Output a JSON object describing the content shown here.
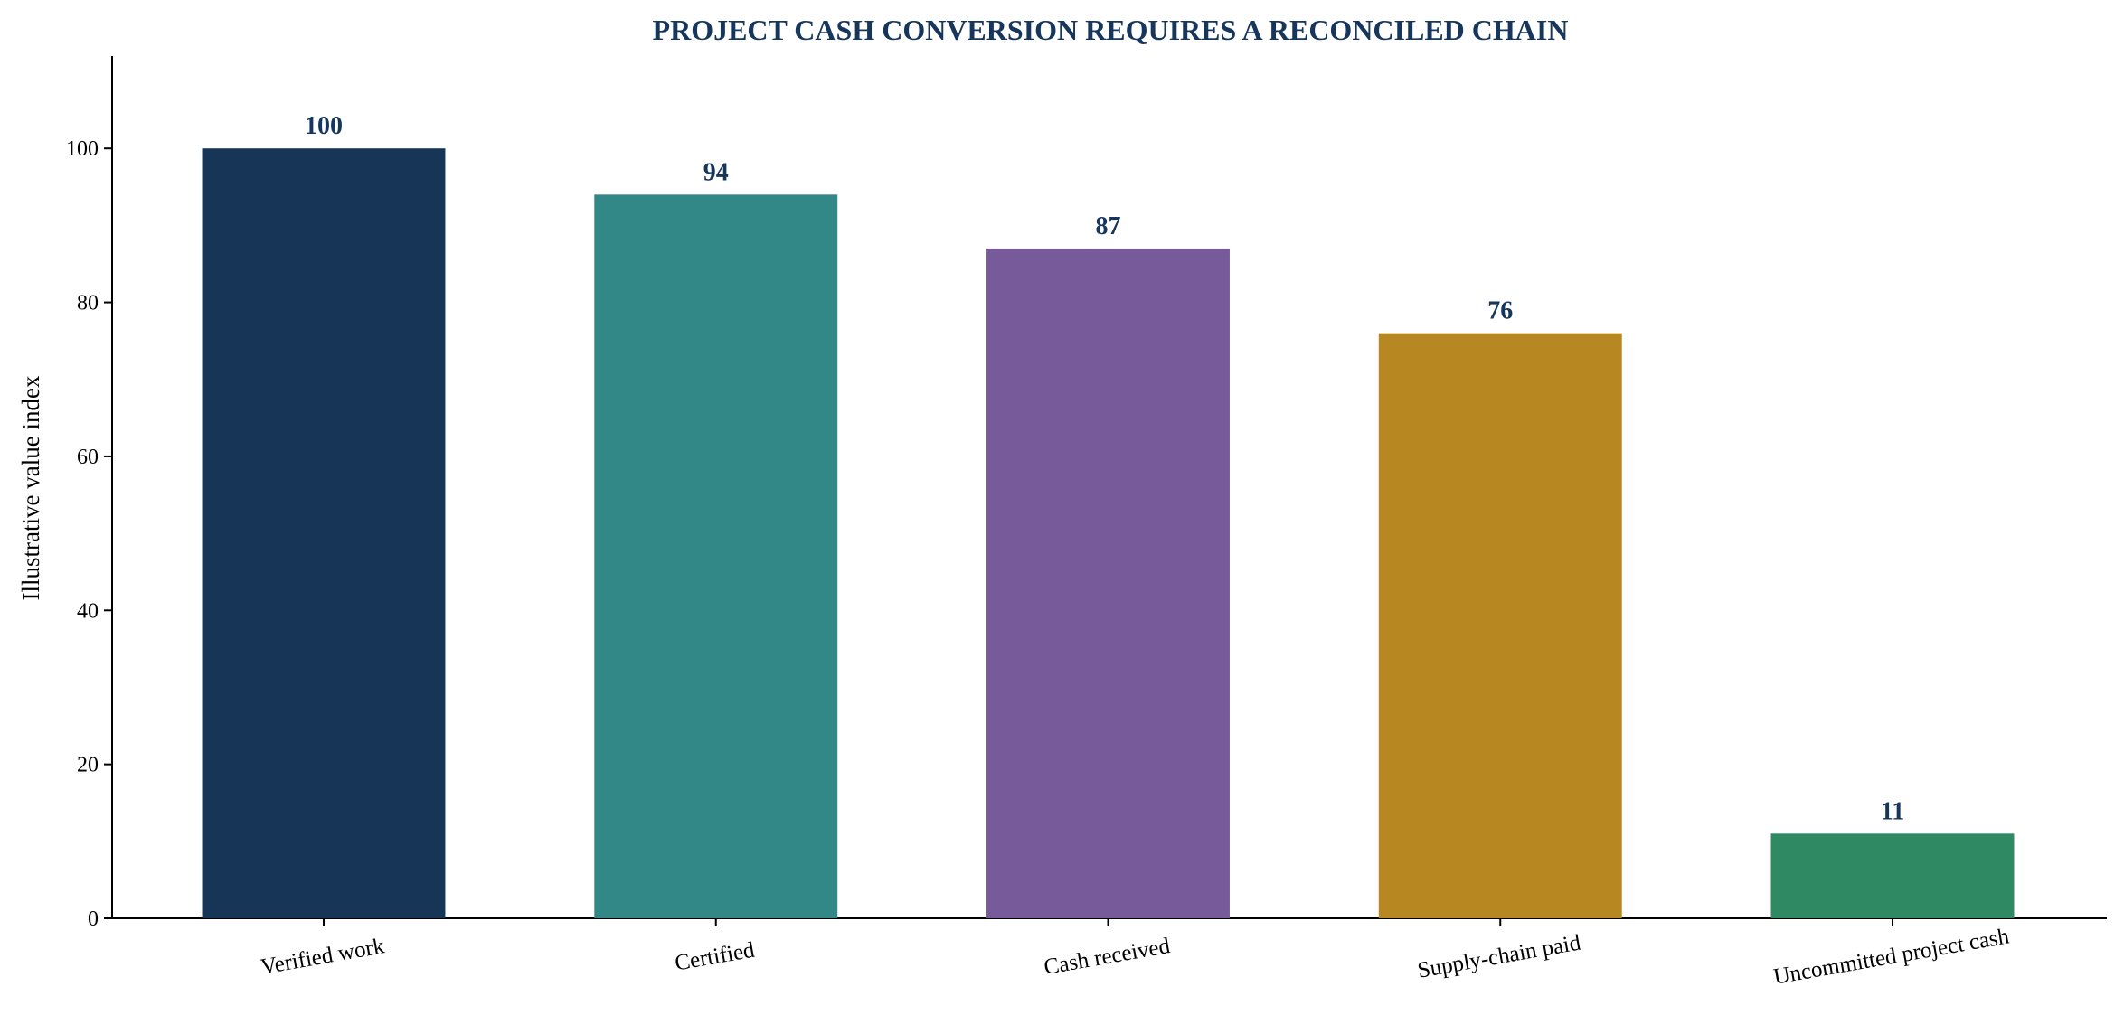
{
  "colors": {
    "title": "#16365c",
    "value_labels": "#16365c",
    "axis": "#000000"
  },
  "chart_data": {
    "type": "bar",
    "title": "PROJECT CASH CONVERSION REQUIRES A RECONCILED CHAIN",
    "xlabel": "",
    "ylabel": "Illustrative value index",
    "ylim": [
      0,
      112
    ],
    "yticks": [
      0,
      20,
      40,
      60,
      80,
      100
    ],
    "grid": false,
    "legend": "none",
    "categories": [
      "Verified work",
      "Certified",
      "Cash received",
      "Supply-chain paid",
      "Uncommitted project cash"
    ],
    "values": [
      100,
      94,
      87,
      76,
      11
    ],
    "value_labels": [
      "100",
      "94",
      "87",
      "76",
      "11"
    ],
    "bar_colors": [
      "#163557",
      "#318886",
      "#765a99",
      "#b78722",
      "#2f8a63"
    ]
  }
}
